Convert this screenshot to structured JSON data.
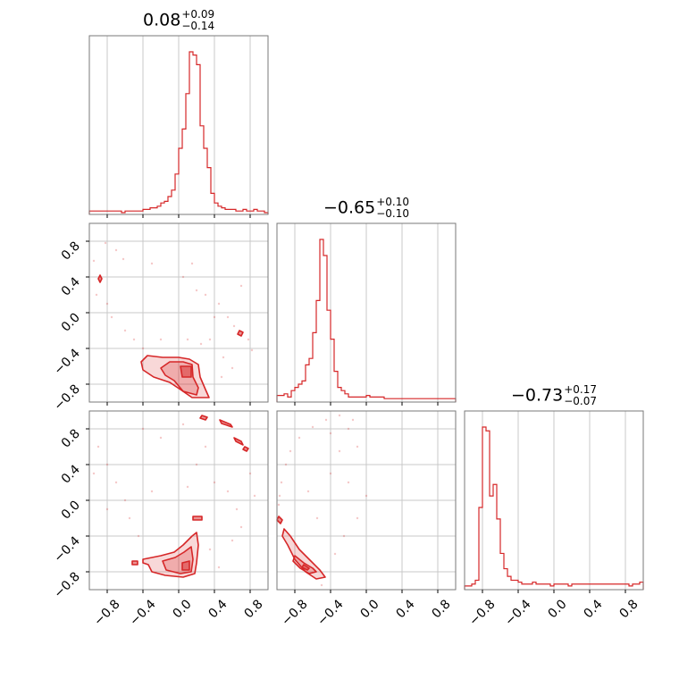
{
  "chart_data": {
    "type": "corner",
    "histogram_color": "#d62728",
    "ticks": [
      -0.8,
      -0.4,
      0.0,
      0.4,
      0.8
    ],
    "tick_labels": [
      "−0.8",
      "−0.4",
      "0.0",
      "0.4",
      "0.8"
    ],
    "grid": true,
    "parameters": [
      {
        "title": {
          "median": "0.08",
          "plus": "+0.09",
          "minus": "−0.14"
        },
        "xlim": [
          -1.0,
          1.0
        ],
        "hist": [
          1,
          1,
          1,
          1,
          1,
          1,
          1,
          1,
          1,
          0,
          1,
          1,
          1,
          1,
          1,
          2,
          2,
          3,
          3,
          4,
          6,
          7,
          10,
          14,
          24,
          40,
          52,
          74,
          100,
          98,
          92,
          54,
          40,
          28,
          12,
          6,
          4,
          3,
          2,
          2,
          2,
          1,
          1,
          2,
          1,
          1,
          2,
          1,
          1,
          0
        ]
      },
      {
        "title": {
          "median": "−0.65",
          "plus": "+0.10",
          "minus": "−0.10"
        },
        "xlim": [
          -1.0,
          1.0
        ],
        "hist": [
          3,
          3,
          4,
          2,
          6,
          8,
          10,
          12,
          22,
          26,
          42,
          62,
          100,
          90,
          56,
          38,
          18,
          8,
          6,
          4,
          2,
          2,
          2,
          2,
          2,
          3,
          2,
          2,
          2,
          2,
          1,
          1,
          1,
          1,
          1,
          1,
          1,
          1,
          1,
          1,
          1,
          1,
          1,
          1,
          1,
          1,
          1,
          1,
          1,
          1
        ]
      },
      {
        "title": {
          "median": "−0.73",
          "plus": "+0.17",
          "minus": "−0.07"
        },
        "xlim": [
          -1.0,
          1.0
        ],
        "hist": [
          1,
          1,
          2,
          4,
          42,
          84,
          82,
          48,
          54,
          36,
          18,
          10,
          6,
          4,
          4,
          3,
          2,
          2,
          2,
          3,
          2,
          2,
          2,
          2,
          1,
          2,
          2,
          2,
          2,
          1,
          2,
          2,
          2,
          2,
          2,
          2,
          2,
          2,
          2,
          2,
          2,
          2,
          2,
          2,
          2,
          2,
          1,
          2,
          2,
          3
        ]
      }
    ],
    "pairs": [
      {
        "x_param": 0,
        "y_param": 1,
        "contours": [
          [
            [
              -0.35,
              -0.48
            ],
            [
              -0.18,
              -0.5
            ],
            [
              0.0,
              -0.5
            ],
            [
              0.12,
              -0.52
            ],
            [
              0.22,
              -0.58
            ],
            [
              0.24,
              -0.72
            ],
            [
              0.3,
              -0.86
            ],
            [
              0.34,
              -0.95
            ],
            [
              0.15,
              -0.95
            ],
            [
              0.02,
              -0.86
            ],
            [
              -0.1,
              -0.78
            ],
            [
              -0.28,
              -0.72
            ],
            [
              -0.4,
              -0.64
            ],
            [
              -0.42,
              -0.55
            ]
          ],
          [
            [
              -0.1,
              -0.55
            ],
            [
              0.05,
              -0.55
            ],
            [
              0.15,
              -0.58
            ],
            [
              0.16,
              -0.72
            ],
            [
              0.22,
              -0.84
            ],
            [
              0.2,
              -0.92
            ],
            [
              0.05,
              -0.88
            ],
            [
              -0.05,
              -0.76
            ],
            [
              -0.15,
              -0.7
            ],
            [
              -0.2,
              -0.62
            ]
          ],
          [
            [
              0.02,
              -0.6
            ],
            [
              0.14,
              -0.6
            ],
            [
              0.14,
              -0.72
            ],
            [
              0.04,
              -0.72
            ]
          ],
          [
            [
              -0.9,
              0.38
            ],
            [
              -0.88,
              0.42
            ],
            [
              -0.86,
              0.38
            ],
            [
              -0.88,
              0.34
            ]
          ],
          [
            [
              0.68,
              -0.2
            ],
            [
              0.72,
              -0.22
            ],
            [
              0.7,
              -0.26
            ],
            [
              0.66,
              -0.24
            ]
          ]
        ],
        "samples": [
          [
            -0.82,
            0.78
          ],
          [
            -0.7,
            0.7
          ],
          [
            -0.62,
            0.6
          ],
          [
            -0.92,
            0.2
          ],
          [
            -0.8,
            0.1
          ],
          [
            -0.75,
            -0.05
          ],
          [
            -0.6,
            -0.2
          ],
          [
            -0.5,
            -0.3
          ],
          [
            -0.4,
            -0.4
          ],
          [
            -0.95,
            0.58
          ],
          [
            0.2,
            0.25
          ],
          [
            0.3,
            0.2
          ],
          [
            0.45,
            0.1
          ],
          [
            0.55,
            -0.05
          ],
          [
            0.62,
            -0.15
          ],
          [
            0.78,
            -0.3
          ],
          [
            0.82,
            -0.42
          ],
          [
            0.4,
            -0.05
          ],
          [
            0.35,
            -0.3
          ],
          [
            0.5,
            -0.5
          ],
          [
            0.6,
            -0.62
          ],
          [
            0.48,
            -0.72
          ],
          [
            0.25,
            -0.35
          ],
          [
            0.1,
            -0.3
          ],
          [
            -0.2,
            -0.3
          ],
          [
            0.05,
            0.4
          ],
          [
            0.15,
            0.55
          ],
          [
            -0.3,
            0.55
          ],
          [
            0.7,
            0.3
          ]
        ]
      },
      {
        "x_param": 0,
        "y_param": 2,
        "contours": [
          [
            [
              -0.4,
              -0.66
            ],
            [
              -0.2,
              -0.62
            ],
            [
              -0.05,
              -0.58
            ],
            [
              0.05,
              -0.5
            ],
            [
              0.15,
              -0.4
            ],
            [
              0.2,
              -0.36
            ],
            [
              0.22,
              -0.5
            ],
            [
              0.2,
              -0.7
            ],
            [
              0.18,
              -0.82
            ],
            [
              0.05,
              -0.86
            ],
            [
              -0.15,
              -0.84
            ],
            [
              -0.3,
              -0.8
            ],
            [
              -0.34,
              -0.72
            ],
            [
              -0.4,
              -0.7
            ]
          ],
          [
            [
              -0.18,
              -0.68
            ],
            [
              -0.04,
              -0.64
            ],
            [
              0.06,
              -0.58
            ],
            [
              0.14,
              -0.52
            ],
            [
              0.16,
              -0.66
            ],
            [
              0.14,
              -0.8
            ],
            [
              0.02,
              -0.82
            ],
            [
              -0.14,
              -0.78
            ]
          ],
          [
            [
              0.04,
              -0.7
            ],
            [
              0.12,
              -0.68
            ],
            [
              0.12,
              -0.78
            ],
            [
              0.04,
              -0.78
            ]
          ],
          [
            [
              0.16,
              -0.18
            ],
            [
              0.26,
              -0.18
            ],
            [
              0.26,
              -0.22
            ],
            [
              0.16,
              -0.22
            ]
          ],
          [
            [
              0.46,
              0.9
            ],
            [
              0.58,
              0.85
            ],
            [
              0.6,
              0.82
            ],
            [
              0.48,
              0.86
            ]
          ],
          [
            [
              0.62,
              0.7
            ],
            [
              0.7,
              0.66
            ],
            [
              0.72,
              0.62
            ],
            [
              0.64,
              0.66
            ]
          ],
          [
            [
              0.74,
              0.6
            ],
            [
              0.78,
              0.58
            ],
            [
              0.76,
              0.55
            ],
            [
              0.72,
              0.57
            ]
          ],
          [
            [
              0.26,
              0.95
            ],
            [
              0.32,
              0.93
            ],
            [
              0.3,
              0.9
            ],
            [
              0.24,
              0.92
            ]
          ],
          [
            [
              -0.52,
              -0.68
            ],
            [
              -0.46,
              -0.68
            ],
            [
              -0.46,
              -0.72
            ],
            [
              -0.52,
              -0.72
            ]
          ]
        ],
        "samples": [
          [
            -0.9,
            0.6
          ],
          [
            -0.8,
            0.4
          ],
          [
            -0.7,
            0.2
          ],
          [
            -0.6,
            0.0
          ],
          [
            -0.55,
            -0.2
          ],
          [
            -0.45,
            -0.4
          ],
          [
            -0.8,
            -0.1
          ],
          [
            -0.95,
            0.3
          ],
          [
            0.3,
            0.6
          ],
          [
            0.2,
            0.4
          ],
          [
            0.4,
            0.2
          ],
          [
            0.55,
            0.1
          ],
          [
            0.65,
            -0.1
          ],
          [
            0.7,
            -0.3
          ],
          [
            0.6,
            -0.45
          ],
          [
            0.35,
            -0.55
          ],
          [
            0.45,
            -0.75
          ],
          [
            -0.2,
            0.7
          ],
          [
            -0.4,
            0.8
          ],
          [
            0.05,
            0.85
          ],
          [
            0.8,
            0.3
          ],
          [
            0.85,
            0.05
          ],
          [
            -0.3,
            0.1
          ],
          [
            0.1,
            0.15
          ]
        ]
      },
      {
        "x_param": 1,
        "y_param": 2,
        "contours": [
          [
            [
              -0.92,
              -0.32
            ],
            [
              -0.85,
              -0.4
            ],
            [
              -0.75,
              -0.55
            ],
            [
              -0.62,
              -0.68
            ],
            [
              -0.52,
              -0.78
            ],
            [
              -0.46,
              -0.86
            ],
            [
              -0.56,
              -0.88
            ],
            [
              -0.68,
              -0.8
            ],
            [
              -0.8,
              -0.66
            ],
            [
              -0.88,
              -0.5
            ],
            [
              -0.94,
              -0.4
            ]
          ],
          [
            [
              -0.8,
              -0.62
            ],
            [
              -0.7,
              -0.7
            ],
            [
              -0.6,
              -0.76
            ],
            [
              -0.56,
              -0.8
            ],
            [
              -0.64,
              -0.82
            ],
            [
              -0.74,
              -0.76
            ],
            [
              -0.82,
              -0.68
            ]
          ],
          [
            [
              -0.7,
              -0.72
            ],
            [
              -0.64,
              -0.76
            ],
            [
              -0.66,
              -0.78
            ],
            [
              -0.72,
              -0.75
            ]
          ],
          [
            [
              -0.98,
              -0.18
            ],
            [
              -0.94,
              -0.22
            ],
            [
              -0.96,
              -0.26
            ],
            [
              -1.0,
              -0.22
            ]
          ]
        ],
        "samples": [
          [
            -0.95,
            0.2
          ],
          [
            -0.9,
            0.4
          ],
          [
            -0.85,
            0.55
          ],
          [
            -0.75,
            0.7
          ],
          [
            -0.6,
            0.82
          ],
          [
            -0.45,
            0.9
          ],
          [
            -0.3,
            0.95
          ],
          [
            -0.2,
            0.8
          ],
          [
            -0.1,
            0.6
          ],
          [
            -0.3,
            0.55
          ],
          [
            -0.4,
            0.3
          ],
          [
            -0.2,
            0.2
          ],
          [
            0.0,
            0.05
          ],
          [
            -0.1,
            -0.2
          ],
          [
            -0.25,
            -0.4
          ],
          [
            -0.35,
            -0.6
          ],
          [
            -0.5,
            -0.95
          ],
          [
            -0.98,
            -0.05
          ],
          [
            -0.97,
            0.05
          ],
          [
            -0.4,
            0.75
          ],
          [
            -0.15,
            0.9
          ],
          [
            -0.55,
            -0.2
          ],
          [
            -0.65,
            0.1
          ]
        ]
      }
    ]
  }
}
